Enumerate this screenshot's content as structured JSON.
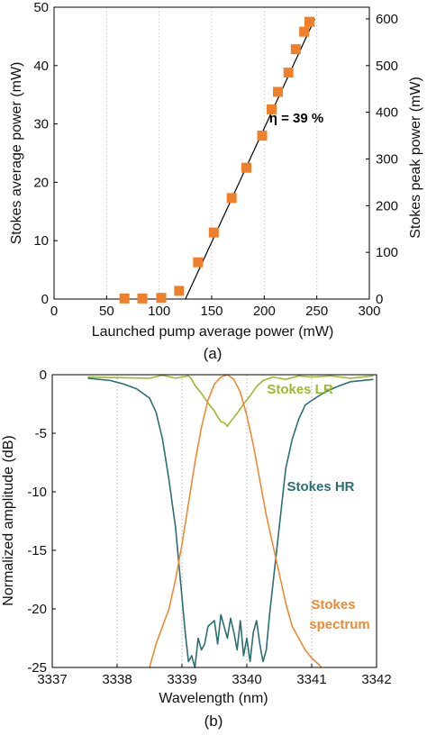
{
  "chart_data": [
    {
      "type": "scatter",
      "caption": "(a)",
      "xlabel": "Launched pump average power (mW)",
      "ylabel": "Stokes average power (mW)",
      "y2label": "Stokes peak power (mW)",
      "xlim": [
        0,
        300
      ],
      "ylim": [
        0,
        50
      ],
      "y2lim": [
        0,
        625
      ],
      "xticks": [
        "0",
        "50",
        "100",
        "150",
        "200",
        "250",
        "300"
      ],
      "yticks": [
        "0",
        "10",
        "20",
        "30",
        "40",
        "50"
      ],
      "y2ticks": [
        "0",
        "100",
        "200",
        "300",
        "400",
        "500",
        "600"
      ],
      "xgrid": true,
      "annotation": "η = 39 %",
      "points": [
        {
          "x": 67,
          "y": 0.1
        },
        {
          "x": 84,
          "y": 0.1
        },
        {
          "x": 102,
          "y": 0.2
        },
        {
          "x": 119,
          "y": 1.4
        },
        {
          "x": 137,
          "y": 6.3
        },
        {
          "x": 152,
          "y": 11.4
        },
        {
          "x": 169,
          "y": 17.3
        },
        {
          "x": 183,
          "y": 22.5
        },
        {
          "x": 198,
          "y": 28.0
        },
        {
          "x": 207,
          "y": 32.5
        },
        {
          "x": 213,
          "y": 35.5
        },
        {
          "x": 223,
          "y": 38.8
        },
        {
          "x": 230,
          "y": 42.8
        },
        {
          "x": 238,
          "y": 45.8
        },
        {
          "x": 243,
          "y": 47.5
        }
      ],
      "fit_line": {
        "x": [
          125,
          248
        ],
        "y": [
          0,
          48
        ]
      },
      "colors": {
        "points": "#f07f2a",
        "fit": "#000000"
      }
    },
    {
      "type": "line",
      "caption": "(b)",
      "xlabel": "Wavelength (nm)",
      "ylabel": "Normalized amplitude (dB)",
      "xlim": [
        3337,
        3342
      ],
      "ylim": [
        -25,
        0
      ],
      "xticks": [
        "3337",
        "3338",
        "3339",
        "3340",
        "3341",
        "3342"
      ],
      "yticks": [
        "0",
        "-5",
        "-10",
        "-15",
        "-20",
        "-25"
      ],
      "xgrid": true,
      "series": [
        {
          "name": "Stokes LR",
          "color": "#9bbb2e",
          "x": [
            3337.55,
            3338.5,
            3338.7,
            3338.9,
            3339.0,
            3339.1,
            3339.15,
            3339.2,
            3339.3,
            3339.4,
            3339.5,
            3339.55,
            3339.6,
            3339.65,
            3339.7,
            3339.75,
            3339.85,
            3339.95,
            3340.05,
            3340.15,
            3340.25,
            3340.4,
            3340.6,
            3340.8,
            3341.0,
            3341.3,
            3341.6,
            3341.95
          ],
          "y": [
            -0.2,
            -0.3,
            -0.05,
            -0.3,
            -0.2,
            -0.1,
            -0.4,
            -0.9,
            -1.6,
            -2.4,
            -3.1,
            -3.6,
            -4.0,
            -4.1,
            -4.4,
            -4.0,
            -3.3,
            -2.5,
            -1.8,
            -1.0,
            -0.5,
            -0.2,
            -0.4,
            -0.1,
            -0.2,
            -0.1,
            -0.3,
            -0.1
          ]
        },
        {
          "name": "Stokes HR",
          "color": "#2b6f73",
          "x": [
            3337.55,
            3337.9,
            3338.1,
            3338.3,
            3338.5,
            3338.6,
            3338.7,
            3338.8,
            3338.9,
            3338.95,
            3339.0,
            3339.05,
            3339.1,
            3339.15,
            3339.2,
            3339.25,
            3339.3,
            3339.35,
            3339.4,
            3339.5,
            3339.55,
            3339.6,
            3339.65,
            3339.7,
            3339.75,
            3339.8,
            3339.85,
            3339.9,
            3339.95,
            3340.0,
            3340.05,
            3340.1,
            3340.15,
            3340.2,
            3340.25,
            3340.3,
            3340.35,
            3340.4,
            3340.5,
            3340.6,
            3340.7,
            3340.8,
            3340.9,
            3341.0,
            3341.2,
            3341.4,
            3341.6,
            3341.95
          ],
          "y": [
            -0.3,
            -0.5,
            -0.8,
            -1.2,
            -2.0,
            -3.2,
            -5.5,
            -9.0,
            -13.0,
            -16.0,
            -19.0,
            -22.0,
            -24.5,
            -24.0,
            -25.0,
            -22.5,
            -23.5,
            -23.0,
            -21.5,
            -21.0,
            -23.0,
            -20.5,
            -21.5,
            -22.5,
            -20.8,
            -22.0,
            -23.5,
            -21.0,
            -24.0,
            -22.5,
            -24.5,
            -22.0,
            -21.0,
            -23.0,
            -24.5,
            -23.5,
            -20.5,
            -18.0,
            -13.0,
            -8.0,
            -5.5,
            -3.8,
            -2.6,
            -2.2,
            -1.5,
            -1.0,
            -0.6,
            -0.4
          ]
        },
        {
          "name": "Stokes spectrum",
          "color": "#ee8a32",
          "x": [
            3338.5,
            3338.6,
            3338.7,
            3338.8,
            3338.9,
            3339.0,
            3339.1,
            3339.2,
            3339.3,
            3339.4,
            3339.5,
            3339.6,
            3339.7,
            3339.8,
            3339.9,
            3340.0,
            3340.1,
            3340.2,
            3340.3,
            3340.4,
            3340.5,
            3340.6,
            3340.7,
            3340.8,
            3340.9,
            3341.0,
            3341.1,
            3341.15
          ],
          "y": [
            -25.0,
            -23.0,
            -21.5,
            -20.0,
            -17.5,
            -14.5,
            -11.0,
            -7.5,
            -4.5,
            -2.2,
            -0.8,
            -0.2,
            0.0,
            -0.4,
            -1.5,
            -3.5,
            -6.0,
            -9.0,
            -12.0,
            -14.5,
            -17.0,
            -19.5,
            -21.5,
            -22.5,
            -23.5,
            -24.2,
            -24.7,
            -25.0
          ]
        }
      ],
      "annotations": [
        {
          "text": "Stokes LR",
          "color": "#9bbb2e"
        },
        {
          "text": "Stokes HR",
          "color": "#2b6f73"
        },
        {
          "text": "Stokes",
          "color": "#ee8a32"
        },
        {
          "text": "spectrum",
          "color": "#ee8a32"
        }
      ]
    }
  ]
}
